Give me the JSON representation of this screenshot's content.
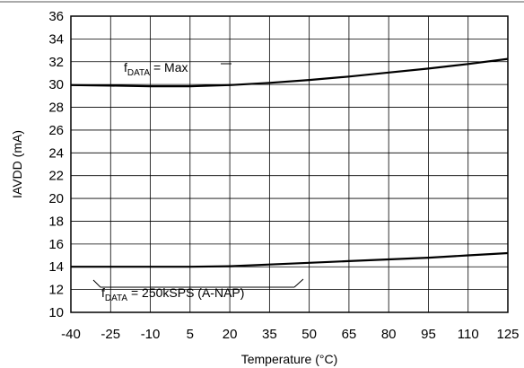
{
  "chart_data": {
    "type": "line",
    "title": "",
    "xlabel": "Temperature (°C)",
    "ylabel": "IAVDD (mA)",
    "xlim": [
      -40,
      125
    ],
    "ylim": [
      10,
      36
    ],
    "xticks": [
      -40,
      -25,
      -10,
      5,
      20,
      35,
      50,
      65,
      80,
      95,
      110,
      125
    ],
    "yticks": [
      10,
      12,
      14,
      16,
      18,
      20,
      22,
      24,
      26,
      28,
      30,
      32,
      34,
      36
    ],
    "grid": true,
    "series": [
      {
        "name": "fDATA = Max",
        "x": [
          -40,
          -25,
          -10,
          5,
          20,
          35,
          50,
          65,
          80,
          95,
          110,
          125
        ],
        "y": [
          29.95,
          29.9,
          29.85,
          29.85,
          29.95,
          30.15,
          30.4,
          30.7,
          31.05,
          31.4,
          31.8,
          32.25
        ]
      },
      {
        "name": "fDATA = 250kSPS (A-NAP)",
        "x": [
          -40,
          -25,
          -10,
          5,
          20,
          35,
          50,
          65,
          80,
          95,
          110,
          125
        ],
        "y": [
          14.0,
          14.0,
          14.0,
          14.0,
          14.05,
          14.2,
          14.35,
          14.5,
          14.65,
          14.8,
          15.0,
          15.2
        ]
      }
    ],
    "annotations": [
      {
        "main": "f",
        "sub": "DATA",
        "rest": " = Max",
        "series": 0
      },
      {
        "main": "f",
        "sub": "DATA",
        "rest": " = 250kSPS (A-NAP)",
        "series": 1
      }
    ],
    "line_color": "#000000",
    "grid_color": "#000000"
  }
}
